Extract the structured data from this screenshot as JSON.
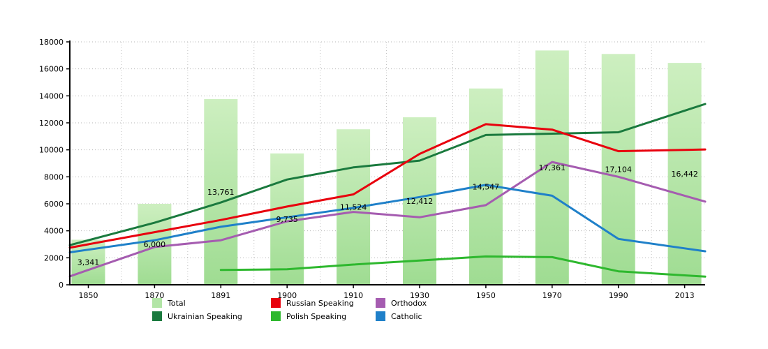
{
  "chart_data": {
    "type": "bar+line",
    "title": "",
    "categories": [
      "1850",
      "1870",
      "1891",
      "1900",
      "1910",
      "1930",
      "1950",
      "1970",
      "1990",
      "2013"
    ],
    "y_axis": {
      "min": 0,
      "max": 18000,
      "tick_step": 2000
    },
    "grid": true,
    "legend_position": "bottom",
    "bar_series": {
      "name": "Total",
      "values": [
        3341,
        6000,
        13761,
        9735,
        11524,
        12412,
        14547,
        17361,
        17104,
        16442
      ],
      "labels": [
        "3,341",
        "6,000",
        "13,761",
        "9,735",
        "11,524",
        "12,412",
        "14,547",
        "17,361",
        "17,104",
        "16,442"
      ],
      "color": "#b2e5a6",
      "color_top": "#cdefc0",
      "color_bottom": "#9fdc92"
    },
    "line_series": [
      {
        "name": "Ukrainian Speaking",
        "color": "#1a7a3e",
        "values": [
          3300,
          4600,
          6100,
          7800,
          8700,
          9200,
          11100,
          11200,
          11300,
          12900
        ]
      },
      {
        "name": "Russian Speaking",
        "color": "#e8000d",
        "values": [
          3000,
          3900,
          4800,
          5800,
          6700,
          9700,
          11900,
          11500,
          9900,
          10000
        ]
      },
      {
        "name": "Polish Speaking",
        "color": "#2eb82e",
        "values": [
          null,
          null,
          1100,
          1150,
          1500,
          1800,
          2100,
          2050,
          1000,
          700
        ]
      },
      {
        "name": "Orthodox",
        "color": "#a55cb0",
        "values": [
          1100,
          2800,
          3300,
          4700,
          5400,
          5000,
          5900,
          9100,
          8000,
          6600
        ]
      },
      {
        "name": "Catholic",
        "color": "#1f80c9",
        "values": [
          2600,
          3300,
          4300,
          5000,
          5700,
          6500,
          7400,
          6600,
          3400,
          2700
        ]
      }
    ],
    "legend": {
      "entries": [
        {
          "label": "Total",
          "color": "#b2e5a6",
          "row": 0,
          "col": 0
        },
        {
          "label": "Russian Speaking",
          "color": "#e8000d",
          "row": 0,
          "col": 1
        },
        {
          "label": "Orthodox",
          "color": "#a55cb0",
          "row": 0,
          "col": 2
        },
        {
          "label": "Ukrainian Speaking",
          "color": "#1a7a3e",
          "row": 1,
          "col": 0
        },
        {
          "label": "Polish Speaking",
          "color": "#2eb82e",
          "row": 1,
          "col": 1
        },
        {
          "label": "Catholic",
          "color": "#1f80c9",
          "row": 1,
          "col": 2
        }
      ]
    }
  }
}
